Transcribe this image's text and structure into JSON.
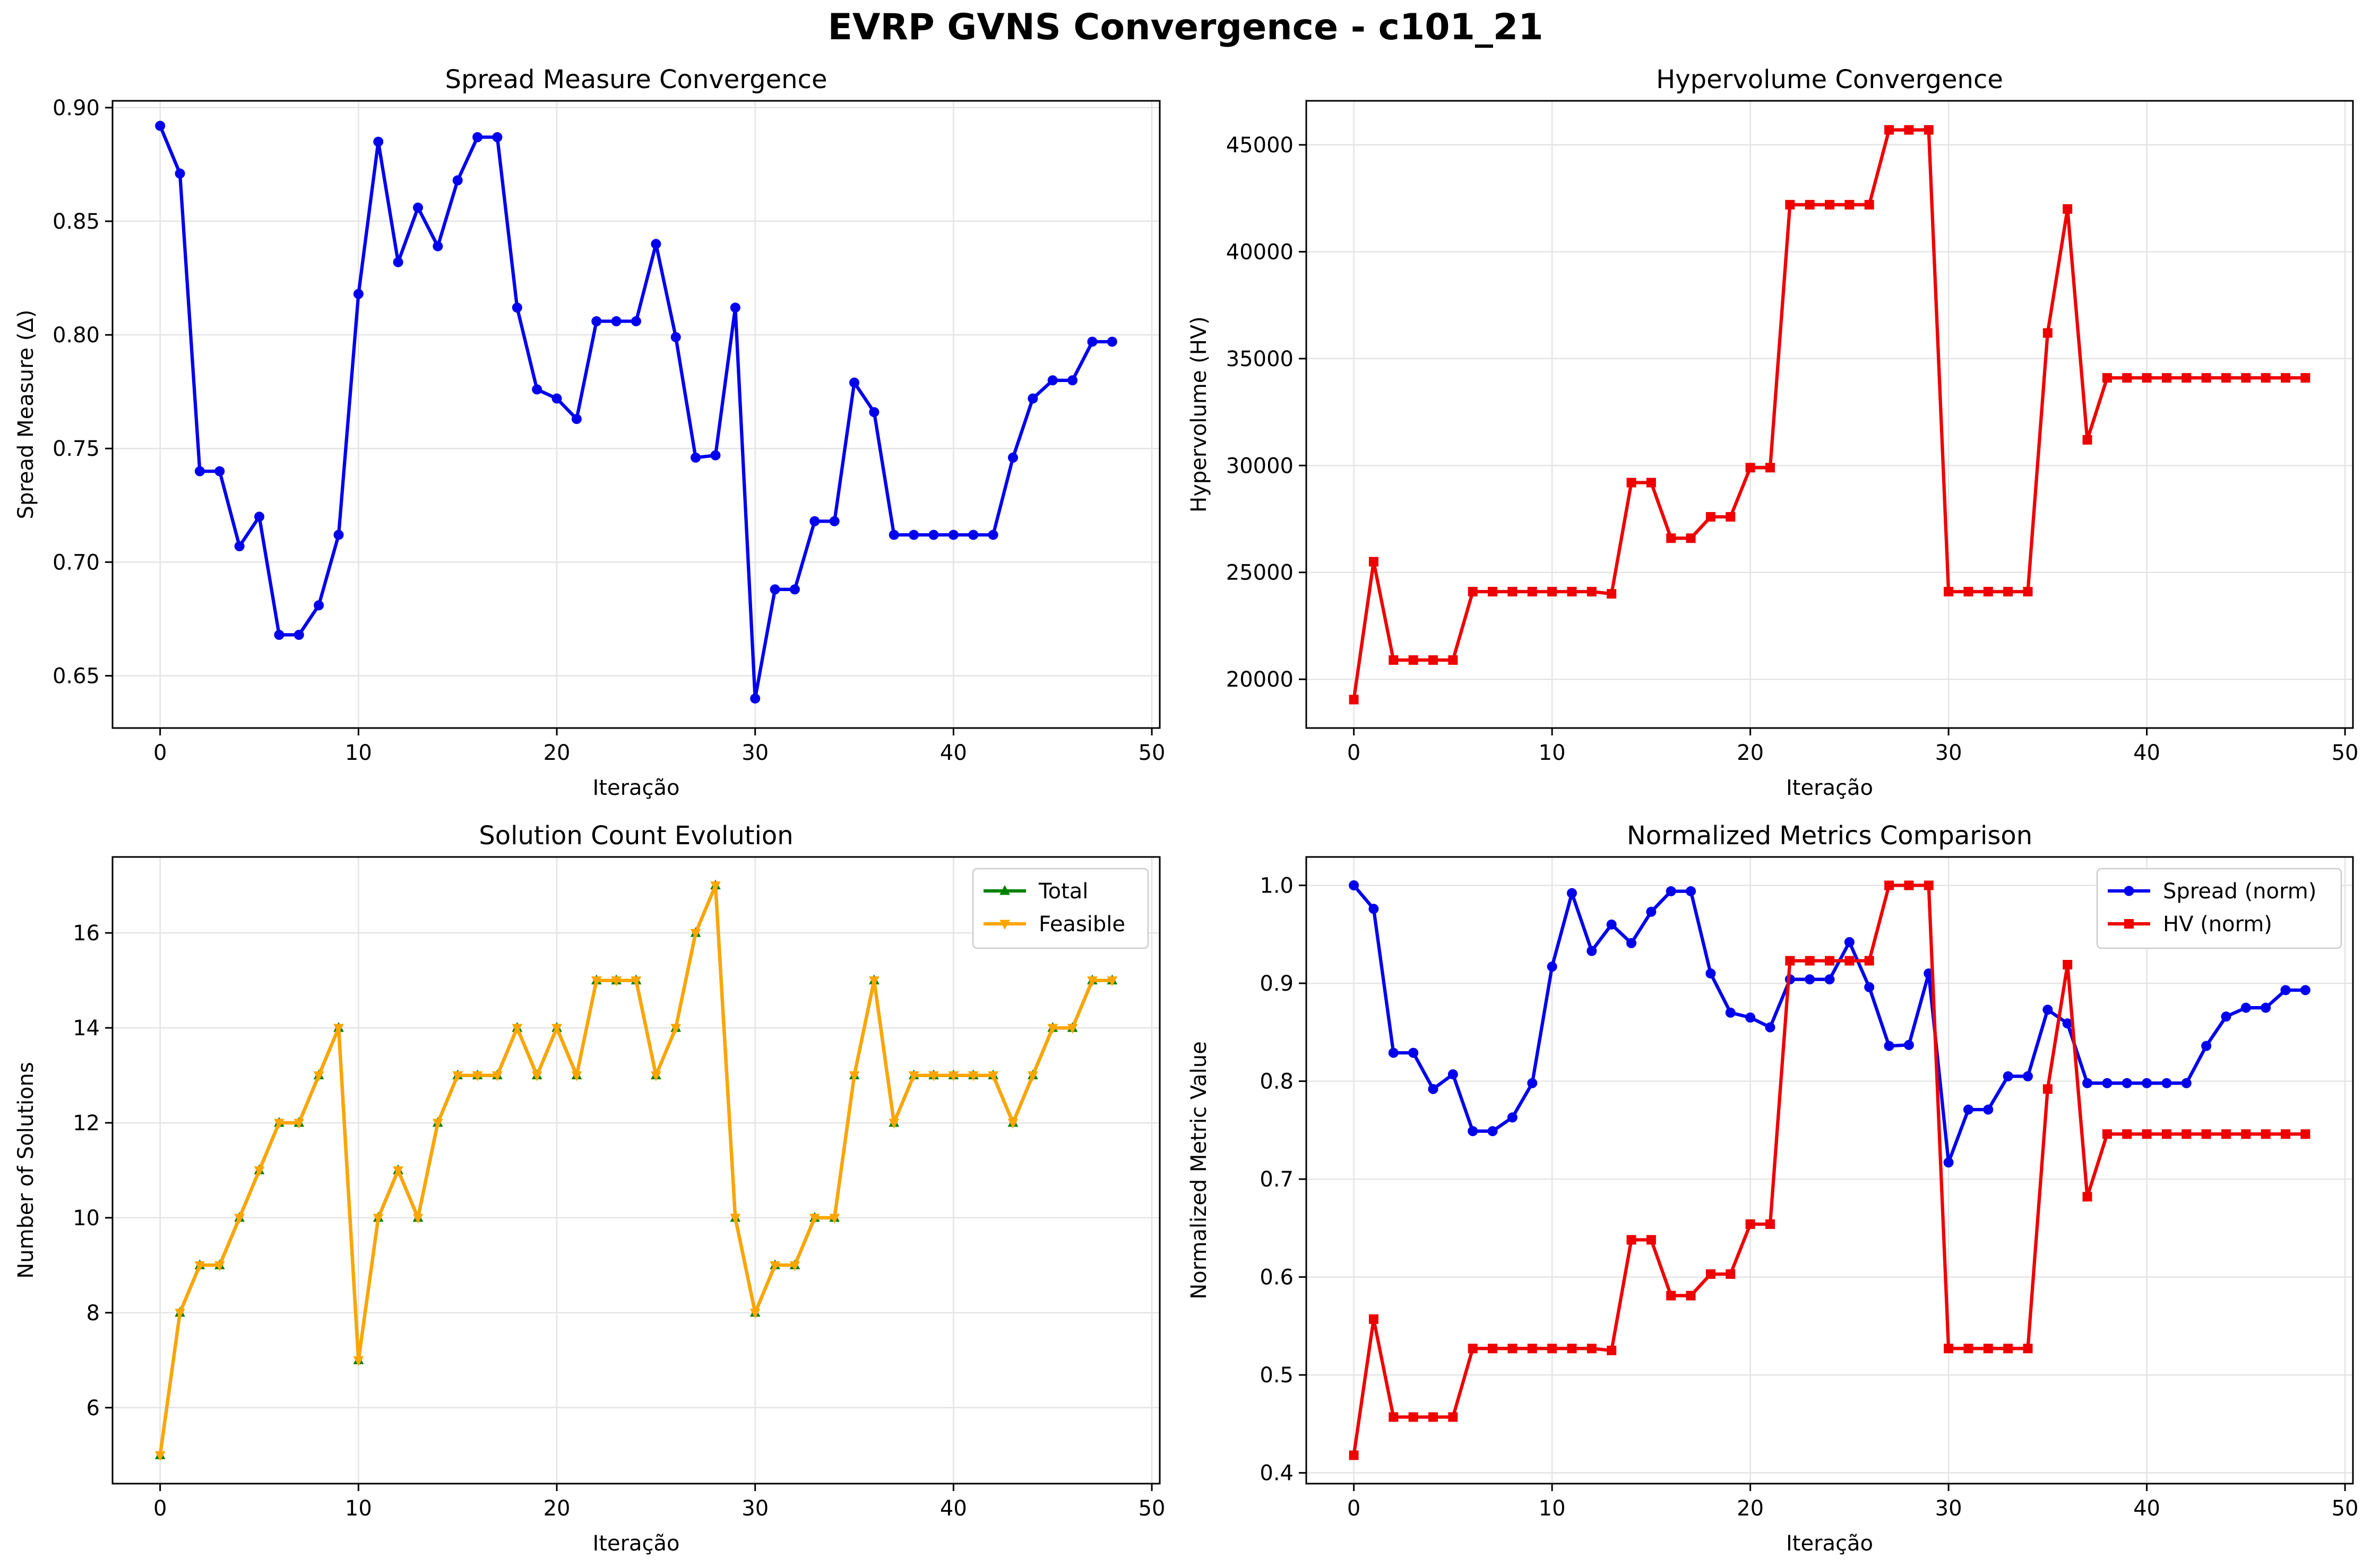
{
  "figure_title": "EVRP GVNS Convergence - c101_21",
  "chart_data": [
    {
      "type": "line",
      "title": "Spread Measure Convergence",
      "xlabel": "Iteração",
      "ylabel": "Spread Measure (Δ)",
      "xlim": [
        -2.4,
        50.4
      ],
      "ylim": [
        0.627,
        0.903
      ],
      "xticks": [
        0,
        10,
        20,
        30,
        40,
        50
      ],
      "yticks": [
        0.65,
        0.7,
        0.75,
        0.8,
        0.85,
        0.9
      ],
      "ytick_labels": [
        "0.65",
        "0.70",
        "0.75",
        "0.80",
        "0.85",
        "0.90"
      ],
      "grid": true,
      "legend": null,
      "x": [
        0,
        1,
        2,
        3,
        4,
        5,
        6,
        7,
        8,
        9,
        10,
        11,
        12,
        13,
        14,
        15,
        16,
        17,
        18,
        19,
        20,
        21,
        22,
        23,
        24,
        25,
        26,
        27,
        28,
        29,
        30,
        31,
        32,
        33,
        34,
        35,
        36,
        37,
        38,
        39,
        40,
        41,
        42,
        43,
        44,
        45,
        46,
        47,
        48
      ],
      "series": [
        {
          "color": "#0000ee",
          "marker": "circle",
          "values": [
            0.892,
            0.871,
            0.74,
            0.74,
            0.707,
            0.72,
            0.668,
            0.668,
            0.681,
            0.712,
            0.818,
            0.885,
            0.832,
            0.856,
            0.839,
            0.868,
            0.887,
            0.887,
            0.812,
            0.776,
            0.772,
            0.763,
            0.806,
            0.806,
            0.806,
            0.84,
            0.799,
            0.746,
            0.747,
            0.812,
            0.64,
            0.688,
            0.688,
            0.718,
            0.718,
            0.779,
            0.766,
            0.712,
            0.712,
            0.712,
            0.712,
            0.712,
            0.712,
            0.746,
            0.772,
            0.78,
            0.78,
            0.797,
            0.797
          ]
        }
      ]
    },
    {
      "type": "line",
      "title": "Hypervolume Convergence",
      "xlabel": "Iteração",
      "ylabel": "Hypervolume (HV)",
      "xlim": [
        -2.4,
        50.4
      ],
      "ylim": [
        17720,
        47060
      ],
      "xticks": [
        0,
        10,
        20,
        30,
        40,
        50
      ],
      "yticks": [
        20000,
        25000,
        30000,
        35000,
        40000,
        45000
      ],
      "ytick_labels": [
        "20000",
        "25000",
        "30000",
        "35000",
        "40000",
        "45000"
      ],
      "grid": true,
      "legend": null,
      "x": [
        0,
        1,
        2,
        3,
        4,
        5,
        6,
        7,
        8,
        9,
        10,
        11,
        12,
        13,
        14,
        15,
        16,
        17,
        18,
        19,
        20,
        21,
        22,
        23,
        24,
        25,
        26,
        27,
        28,
        29,
        30,
        31,
        32,
        33,
        34,
        35,
        36,
        37,
        38,
        39,
        40,
        41,
        42,
        43,
        44,
        45,
        46,
        47,
        48
      ],
      "series": [
        {
          "color": "#ee0000",
          "marker": "square",
          "values": [
            19050,
            25500,
            20900,
            20900,
            20900,
            20900,
            24100,
            24100,
            24100,
            24100,
            24100,
            24100,
            24100,
            24000,
            29200,
            29200,
            26600,
            26600,
            27600,
            27600,
            29900,
            29900,
            42200,
            42200,
            42200,
            42200,
            42200,
            45700,
            45700,
            45700,
            24100,
            24100,
            24100,
            24100,
            24100,
            36200,
            42000,
            31200,
            34100,
            34100,
            34100,
            34100,
            34100,
            34100,
            34100,
            34100,
            34100,
            34100,
            34100
          ]
        }
      ]
    },
    {
      "type": "line",
      "title": "Solution Count Evolution",
      "xlabel": "Iteração",
      "ylabel": "Number of Solutions",
      "xlim": [
        -2.4,
        50.4
      ],
      "ylim": [
        4.4,
        17.6
      ],
      "xticks": [
        0,
        10,
        20,
        30,
        40,
        50
      ],
      "yticks": [
        6,
        8,
        10,
        12,
        14,
        16
      ],
      "ytick_labels": [
        "6",
        "8",
        "10",
        "12",
        "14",
        "16"
      ],
      "grid": true,
      "legend": "upper right",
      "x": [
        0,
        1,
        2,
        3,
        4,
        5,
        6,
        7,
        8,
        9,
        10,
        11,
        12,
        13,
        14,
        15,
        16,
        17,
        18,
        19,
        20,
        21,
        22,
        23,
        24,
        25,
        26,
        27,
        28,
        29,
        30,
        31,
        32,
        33,
        34,
        35,
        36,
        37,
        38,
        39,
        40,
        41,
        42,
        43,
        44,
        45,
        46,
        47,
        48
      ],
      "series": [
        {
          "name": "Total",
          "color": "#008000",
          "marker": "triangle-up",
          "values": [
            5,
            8,
            9,
            9,
            10,
            11,
            12,
            12,
            13,
            14,
            7,
            10,
            11,
            10,
            12,
            13,
            13,
            13,
            14,
            13,
            14,
            13,
            15,
            15,
            15,
            13,
            14,
            16,
            17,
            10,
            8,
            9,
            9,
            10,
            10,
            13,
            15,
            12,
            13,
            13,
            13,
            13,
            13,
            12,
            13,
            14,
            14,
            15,
            15
          ]
        },
        {
          "name": "Feasible",
          "color": "#ffa500",
          "marker": "triangle-down",
          "values": [
            5,
            8,
            9,
            9,
            10,
            11,
            12,
            12,
            13,
            14,
            7,
            10,
            11,
            10,
            12,
            13,
            13,
            13,
            14,
            13,
            14,
            13,
            15,
            15,
            15,
            13,
            14,
            16,
            17,
            10,
            8,
            9,
            9,
            10,
            10,
            13,
            15,
            12,
            13,
            13,
            13,
            13,
            13,
            12,
            13,
            14,
            14,
            15,
            15
          ]
        }
      ]
    },
    {
      "type": "line",
      "title": "Normalized Metrics Comparison",
      "xlabel": "Iteração",
      "ylabel": "Normalized Metric Value",
      "xlim": [
        -2.4,
        50.4
      ],
      "ylim": [
        0.389,
        1.029
      ],
      "xticks": [
        0,
        10,
        20,
        30,
        40,
        50
      ],
      "yticks": [
        0.4,
        0.5,
        0.6,
        0.7,
        0.8,
        0.9,
        1.0
      ],
      "ytick_labels": [
        "0.4",
        "0.5",
        "0.6",
        "0.7",
        "0.8",
        "0.9",
        "1.0"
      ],
      "grid": true,
      "legend": "upper right",
      "x": [
        0,
        1,
        2,
        3,
        4,
        5,
        6,
        7,
        8,
        9,
        10,
        11,
        12,
        13,
        14,
        15,
        16,
        17,
        18,
        19,
        20,
        21,
        22,
        23,
        24,
        25,
        26,
        27,
        28,
        29,
        30,
        31,
        32,
        33,
        34,
        35,
        36,
        37,
        38,
        39,
        40,
        41,
        42,
        43,
        44,
        45,
        46,
        47,
        48
      ],
      "series": [
        {
          "name": "Spread (norm)",
          "color": "#0000ee",
          "marker": "circle",
          "values": [
            1.0,
            0.976,
            0.829,
            0.829,
            0.792,
            0.807,
            0.749,
            0.749,
            0.763,
            0.798,
            0.917,
            0.992,
            0.933,
            0.96,
            0.941,
            0.973,
            0.994,
            0.994,
            0.91,
            0.87,
            0.865,
            0.855,
            0.904,
            0.904,
            0.904,
            0.942,
            0.896,
            0.836,
            0.837,
            0.91,
            0.717,
            0.771,
            0.771,
            0.805,
            0.805,
            0.873,
            0.859,
            0.798,
            0.798,
            0.798,
            0.798,
            0.798,
            0.798,
            0.836,
            0.866,
            0.875,
            0.875,
            0.893,
            0.893
          ]
        },
        {
          "name": "HV (norm)",
          "color": "#ee0000",
          "marker": "square",
          "values": [
            0.418,
            0.557,
            0.457,
            0.457,
            0.457,
            0.457,
            0.527,
            0.527,
            0.527,
            0.527,
            0.527,
            0.527,
            0.527,
            0.525,
            0.638,
            0.638,
            0.581,
            0.581,
            0.603,
            0.603,
            0.654,
            0.654,
            0.923,
            0.923,
            0.923,
            0.923,
            0.923,
            1.0,
            1.0,
            1.0,
            0.527,
            0.527,
            0.527,
            0.527,
            0.527,
            0.792,
            0.919,
            0.682,
            0.746,
            0.746,
            0.746,
            0.746,
            0.746,
            0.746,
            0.746,
            0.746,
            0.746,
            0.746,
            0.746
          ]
        }
      ]
    }
  ]
}
